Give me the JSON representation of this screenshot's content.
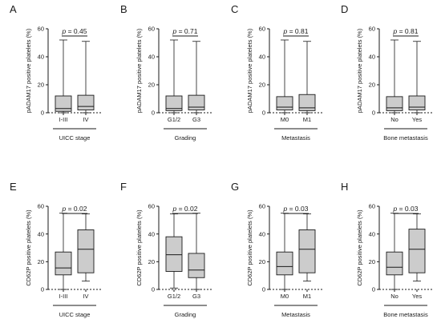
{
  "chart_data": [
    {
      "type": "boxplot",
      "letter": "A",
      "ylabel": "pADAM17 positive platelets (%)",
      "xlabel": "UICC stage",
      "p_label": "p = 0.45",
      "ylim": [
        0,
        60
      ],
      "yticks": [
        0,
        20,
        40,
        60
      ],
      "categories": [
        "I-III",
        "IV"
      ],
      "boxes": [
        {
          "min": 0,
          "q1": 1,
          "median": 3,
          "q3": 12,
          "max": 52
        },
        {
          "min": 0,
          "q1": 2,
          "median": 4.5,
          "q3": 12.5,
          "max": 51
        }
      ]
    },
    {
      "type": "boxplot",
      "letter": "B",
      "ylabel": "pADAM17 positive platelets (%)",
      "xlabel": "Grading",
      "p_label": "p = 0.71",
      "ylim": [
        0,
        60
      ],
      "yticks": [
        0,
        20,
        40,
        60
      ],
      "categories": [
        "G1/2",
        "G3"
      ],
      "boxes": [
        {
          "min": 0,
          "q1": 1.5,
          "median": 3,
          "q3": 12,
          "max": 52
        },
        {
          "min": 0,
          "q1": 2,
          "median": 4,
          "q3": 12.5,
          "max": 51
        }
      ]
    },
    {
      "type": "boxplot",
      "letter": "C",
      "ylabel": "pADAM17 positive platelets (%)",
      "xlabel": "Metastasis",
      "p_label": "p = 0.81",
      "ylim": [
        0,
        60
      ],
      "yticks": [
        0,
        20,
        40,
        60
      ],
      "categories": [
        "M0",
        "M1"
      ],
      "boxes": [
        {
          "min": 0,
          "q1": 2,
          "median": 4,
          "q3": 11.5,
          "max": 52
        },
        {
          "min": 0,
          "q1": 1.5,
          "median": 3.5,
          "q3": 13,
          "max": 51
        }
      ]
    },
    {
      "type": "boxplot",
      "letter": "D",
      "ylabel": "pADAM17 positive platelets (%)",
      "xlabel": "Bone metastasis",
      "p_label": "p = 0.81",
      "ylim": [
        0,
        60
      ],
      "yticks": [
        0,
        20,
        40,
        60
      ],
      "categories": [
        "No",
        "Yes"
      ],
      "boxes": [
        {
          "min": 0,
          "q1": 1.5,
          "median": 3.5,
          "q3": 11.5,
          "max": 52
        },
        {
          "min": 0,
          "q1": 2,
          "median": 4,
          "q3": 12,
          "max": 51
        }
      ]
    },
    {
      "type": "boxplot",
      "letter": "E",
      "ylabel": "CD62P positive platelets (%)",
      "xlabel": "UICC stage",
      "p_label": "p = 0.02",
      "ylim": [
        0,
        60
      ],
      "yticks": [
        0,
        20,
        40,
        60
      ],
      "categories": [
        "I-III",
        "IV"
      ],
      "boxes": [
        {
          "min": 0,
          "q1": 10.5,
          "median": 15.5,
          "q3": 27,
          "max": 55
        },
        {
          "min": 6,
          "q1": 12,
          "median": 29,
          "q3": 43,
          "max": 54.5
        }
      ]
    },
    {
      "type": "boxplot",
      "letter": "F",
      "ylabel": "CD62P positive platelets (%)",
      "xlabel": "Grading",
      "p_label": "p = 0.02",
      "ylim": [
        0,
        60
      ],
      "yticks": [
        0,
        20,
        40,
        60
      ],
      "categories": [
        "G1/2",
        "G3"
      ],
      "boxes": [
        {
          "min": 1,
          "q1": 13,
          "median": 25,
          "q3": 38,
          "max": 54.5
        },
        {
          "min": 0,
          "q1": 8.5,
          "median": 14,
          "q3": 26,
          "max": 55
        }
      ]
    },
    {
      "type": "boxplot",
      "letter": "G",
      "ylabel": "CD62P positive platelets (%)",
      "xlabel": "Metastasis",
      "p_label": "p = 0.03",
      "ylim": [
        0,
        60
      ],
      "yticks": [
        0,
        20,
        40,
        60
      ],
      "categories": [
        "M0",
        "M1"
      ],
      "boxes": [
        {
          "min": 0,
          "q1": 10.5,
          "median": 16.5,
          "q3": 27,
          "max": 55
        },
        {
          "min": 6,
          "q1": 12,
          "median": 29,
          "q3": 43,
          "max": 54.5
        }
      ]
    },
    {
      "type": "boxplot",
      "letter": "H",
      "ylabel": "CD62P positive platelets (%)",
      "xlabel": "Bone metastasis",
      "p_label": "p = 0.03",
      "ylim": [
        0,
        60
      ],
      "yticks": [
        0,
        20,
        40,
        60
      ],
      "categories": [
        "No",
        "Yes"
      ],
      "boxes": [
        {
          "min": 0,
          "q1": 10.5,
          "median": 16,
          "q3": 27,
          "max": 55
        },
        {
          "min": 6,
          "q1": 12,
          "median": 29,
          "q3": 43.5,
          "max": 54.5
        }
      ]
    }
  ],
  "colors": {
    "box_fill": "#cccccc",
    "stroke": "#1a1a1a"
  }
}
